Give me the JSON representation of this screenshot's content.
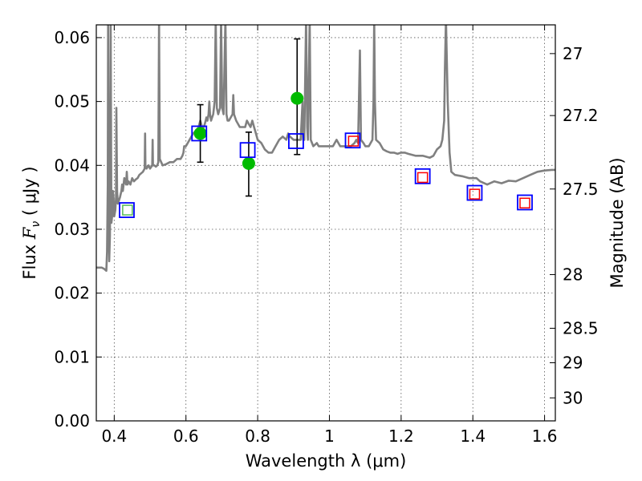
{
  "chart_data": {
    "type": "scatter",
    "title": "",
    "xlabel": "Wavelength  λ (μm)",
    "ylabel": "Flux  F_ν  ( μJy )",
    "ylabel_parts": {
      "prefix": "Flux ",
      "symbol": "F",
      "subscript": "ν",
      "suffix": "  ( μJy )"
    },
    "y2label": "Magnitude (AB)",
    "xlim": [
      0.35,
      1.63
    ],
    "ylim": [
      0.0,
      0.062
    ],
    "grid": true,
    "x_ticks": [
      {
        "value": 0.4,
        "label": "0.4"
      },
      {
        "value": 0.6,
        "label": "0.6"
      },
      {
        "value": 0.8,
        "label": "0.8"
      },
      {
        "value": 1.0,
        "label": "1"
      },
      {
        "value": 1.2,
        "label": "1.2"
      },
      {
        "value": 1.4,
        "label": "1.4"
      },
      {
        "value": 1.6,
        "label": "1.6"
      }
    ],
    "y_ticks": [
      {
        "value": 0.0,
        "label": "0.00"
      },
      {
        "value": 0.01,
        "label": "0.01"
      },
      {
        "value": 0.02,
        "label": "0.02"
      },
      {
        "value": 0.03,
        "label": "0.03"
      },
      {
        "value": 0.04,
        "label": "0.04"
      },
      {
        "value": 0.05,
        "label": "0.05"
      },
      {
        "value": 0.06,
        "label": "0.06"
      }
    ],
    "y2_ticks": [
      {
        "label": "27",
        "flux": 0.0575
      },
      {
        "label": "27.2",
        "flux": 0.0478
      },
      {
        "label": "27.5",
        "flux": 0.0363
      },
      {
        "label": "28",
        "flux": 0.0229
      },
      {
        "label": "28.5",
        "flux": 0.0145
      },
      {
        "label": "29",
        "flux": 0.0091
      },
      {
        "label": "30",
        "flux": 0.0036
      }
    ],
    "series": [
      {
        "kind": "line",
        "color": "#808080",
        "points": [
          [
            0.35,
            0.024
          ],
          [
            0.365,
            0.024
          ],
          [
            0.372,
            0.0238
          ],
          [
            0.378,
            0.0235
          ],
          [
            0.38,
            0.0265
          ],
          [
            0.382,
            0.037
          ],
          [
            0.383,
            0.062
          ],
          [
            0.384,
            0.04
          ],
          [
            0.386,
            0.025
          ],
          [
            0.388,
            0.029
          ],
          [
            0.39,
            0.062
          ],
          [
            0.392,
            0.031
          ],
          [
            0.394,
            0.032
          ],
          [
            0.396,
            0.036
          ],
          [
            0.398,
            0.035
          ],
          [
            0.4,
            0.032
          ],
          [
            0.403,
            0.033
          ],
          [
            0.405,
            0.035
          ],
          [
            0.406,
            0.049
          ],
          [
            0.408,
            0.036
          ],
          [
            0.41,
            0.034
          ],
          [
            0.413,
            0.0345
          ],
          [
            0.416,
            0.035
          ],
          [
            0.42,
            0.036
          ],
          [
            0.422,
            0.037
          ],
          [
            0.424,
            0.036
          ],
          [
            0.428,
            0.038
          ],
          [
            0.433,
            0.037
          ],
          [
            0.435,
            0.039
          ],
          [
            0.437,
            0.037
          ],
          [
            0.44,
            0.0375
          ],
          [
            0.445,
            0.037
          ],
          [
            0.45,
            0.038
          ],
          [
            0.455,
            0.0375
          ],
          [
            0.46,
            0.0378
          ],
          [
            0.465,
            0.038
          ],
          [
            0.47,
            0.0385
          ],
          [
            0.48,
            0.039
          ],
          [
            0.485,
            0.0395
          ],
          [
            0.486,
            0.045
          ],
          [
            0.487,
            0.04
          ],
          [
            0.49,
            0.0395
          ],
          [
            0.496,
            0.04
          ],
          [
            0.5,
            0.0395
          ],
          [
            0.506,
            0.04
          ],
          [
            0.507,
            0.044
          ],
          [
            0.508,
            0.04
          ],
          [
            0.512,
            0.04
          ],
          [
            0.516,
            0.0398
          ],
          [
            0.52,
            0.04
          ],
          [
            0.523,
            0.0405
          ],
          [
            0.525,
            0.063
          ],
          [
            0.527,
            0.041
          ],
          [
            0.535,
            0.04
          ],
          [
            0.545,
            0.0402
          ],
          [
            0.555,
            0.0405
          ],
          [
            0.565,
            0.0405
          ],
          [
            0.575,
            0.041
          ],
          [
            0.585,
            0.041
          ],
          [
            0.59,
            0.0415
          ],
          [
            0.593,
            0.042
          ],
          [
            0.595,
            0.043
          ],
          [
            0.6,
            0.043
          ],
          [
            0.61,
            0.044
          ],
          [
            0.62,
            0.045
          ],
          [
            0.63,
            0.0455
          ],
          [
            0.635,
            0.046
          ],
          [
            0.64,
            0.047
          ],
          [
            0.645,
            0.046
          ],
          [
            0.65,
            0.046
          ],
          [
            0.655,
            0.047
          ],
          [
            0.657,
            0.0475
          ],
          [
            0.66,
            0.047
          ],
          [
            0.663,
            0.048
          ],
          [
            0.665,
            0.05
          ],
          [
            0.667,
            0.048
          ],
          [
            0.67,
            0.047
          ],
          [
            0.673,
            0.0475
          ],
          [
            0.676,
            0.048
          ],
          [
            0.68,
            0.05
          ],
          [
            0.683,
            0.063
          ],
          [
            0.686,
            0.049
          ],
          [
            0.69,
            0.048
          ],
          [
            0.695,
            0.049
          ],
          [
            0.698,
            0.063
          ],
          [
            0.701,
            0.049
          ],
          [
            0.705,
            0.048
          ],
          [
            0.71,
            0.063
          ],
          [
            0.713,
            0.048
          ],
          [
            0.716,
            0.047
          ],
          [
            0.72,
            0.047
          ],
          [
            0.73,
            0.048
          ],
          [
            0.732,
            0.051
          ],
          [
            0.734,
            0.048
          ],
          [
            0.74,
            0.047
          ],
          [
            0.75,
            0.046
          ],
          [
            0.76,
            0.046
          ],
          [
            0.765,
            0.046
          ],
          [
            0.77,
            0.047
          ],
          [
            0.775,
            0.0465
          ],
          [
            0.78,
            0.046
          ],
          [
            0.785,
            0.047
          ],
          [
            0.79,
            0.046
          ],
          [
            0.795,
            0.045
          ],
          [
            0.8,
            0.044
          ],
          [
            0.81,
            0.0435
          ],
          [
            0.82,
            0.0425
          ],
          [
            0.83,
            0.042
          ],
          [
            0.84,
            0.042
          ],
          [
            0.85,
            0.043
          ],
          [
            0.86,
            0.044
          ],
          [
            0.87,
            0.0445
          ],
          [
            0.88,
            0.044
          ],
          [
            0.885,
            0.045
          ],
          [
            0.89,
            0.0445
          ],
          [
            0.9,
            0.044
          ],
          [
            0.905,
            0.044
          ],
          [
            0.91,
            0.044
          ],
          [
            0.915,
            0.044
          ],
          [
            0.92,
            0.044
          ],
          [
            0.925,
            0.05
          ],
          [
            0.927,
            0.044
          ],
          [
            0.93,
            0.044
          ],
          [
            0.935,
            0.063
          ],
          [
            0.938,
            0.046
          ],
          [
            0.94,
            0.044
          ],
          [
            0.945,
            0.063
          ],
          [
            0.948,
            0.044
          ],
          [
            0.955,
            0.043
          ],
          [
            0.965,
            0.0435
          ],
          [
            0.97,
            0.043
          ],
          [
            0.98,
            0.043
          ],
          [
            0.99,
            0.043
          ],
          [
            1.0,
            0.043
          ],
          [
            1.01,
            0.043
          ],
          [
            1.02,
            0.044
          ],
          [
            1.03,
            0.043
          ],
          [
            1.04,
            0.043
          ],
          [
            1.05,
            0.043
          ],
          [
            1.06,
            0.043
          ],
          [
            1.07,
            0.0435
          ],
          [
            1.075,
            0.044
          ],
          [
            1.08,
            0.0435
          ],
          [
            1.085,
            0.058
          ],
          [
            1.088,
            0.044
          ],
          [
            1.095,
            0.0435
          ],
          [
            1.1,
            0.043
          ],
          [
            1.11,
            0.043
          ],
          [
            1.12,
            0.044
          ],
          [
            1.123,
            0.05
          ],
          [
            1.125,
            0.063
          ],
          [
            1.127,
            0.05
          ],
          [
            1.13,
            0.044
          ],
          [
            1.14,
            0.0435
          ],
          [
            1.15,
            0.0425
          ],
          [
            1.16,
            0.0422
          ],
          [
            1.17,
            0.042
          ],
          [
            1.18,
            0.042
          ],
          [
            1.19,
            0.0418
          ],
          [
            1.2,
            0.042
          ],
          [
            1.21,
            0.042
          ],
          [
            1.22,
            0.0418
          ],
          [
            1.24,
            0.0415
          ],
          [
            1.26,
            0.0415
          ],
          [
            1.28,
            0.0412
          ],
          [
            1.29,
            0.0415
          ],
          [
            1.3,
            0.0425
          ],
          [
            1.31,
            0.043
          ],
          [
            1.315,
            0.044
          ],
          [
            1.32,
            0.047
          ],
          [
            1.322,
            0.055
          ],
          [
            1.325,
            0.063
          ],
          [
            1.33,
            0.05
          ],
          [
            1.335,
            0.042
          ],
          [
            1.34,
            0.039
          ],
          [
            1.35,
            0.0385
          ],
          [
            1.37,
            0.0383
          ],
          [
            1.39,
            0.038
          ],
          [
            1.41,
            0.038
          ],
          [
            1.42,
            0.0375
          ],
          [
            1.44,
            0.037
          ],
          [
            1.46,
            0.0375
          ],
          [
            1.48,
            0.0372
          ],
          [
            1.5,
            0.0376
          ],
          [
            1.52,
            0.0375
          ],
          [
            1.54,
            0.038
          ],
          [
            1.56,
            0.0385
          ],
          [
            1.58,
            0.039
          ],
          [
            1.6,
            0.0392
          ],
          [
            1.62,
            0.0393
          ],
          [
            1.63,
            0.0393
          ]
        ]
      },
      {
        "kind": "points_with_error",
        "marker": "circle",
        "color": "#00bb00",
        "error_color": "#000000",
        "points": [
          {
            "x": 0.64,
            "y": 0.045,
            "ylo": 0.0405,
            "yhi": 0.0495
          },
          {
            "x": 0.775,
            "y": 0.0403,
            "ylo": 0.0352,
            "yhi": 0.0452
          },
          {
            "x": 0.91,
            "y": 0.0505,
            "ylo": 0.0417,
            "yhi": 0.0598
          }
        ]
      },
      {
        "kind": "points",
        "marker": "square",
        "color": "#0000ff",
        "points": [
          {
            "x": 0.435,
            "y": 0.033
          },
          {
            "x": 0.637,
            "y": 0.045
          },
          {
            "x": 0.772,
            "y": 0.0424
          },
          {
            "x": 0.907,
            "y": 0.0438
          },
          {
            "x": 1.065,
            "y": 0.0439
          },
          {
            "x": 1.26,
            "y": 0.0383
          },
          {
            "x": 1.405,
            "y": 0.0357
          },
          {
            "x": 1.545,
            "y": 0.0342
          }
        ]
      },
      {
        "kind": "points",
        "marker": "square-small",
        "color": "#ff0000",
        "points": [
          {
            "x": 1.067,
            "y": 0.0438
          },
          {
            "x": 1.26,
            "y": 0.0381
          },
          {
            "x": 1.405,
            "y": 0.0355
          },
          {
            "x": 1.545,
            "y": 0.0341
          }
        ]
      },
      {
        "kind": "points",
        "marker": "square-small",
        "color": "#55bb55",
        "points": [
          {
            "x": 0.437,
            "y": 0.033
          }
        ]
      }
    ]
  }
}
